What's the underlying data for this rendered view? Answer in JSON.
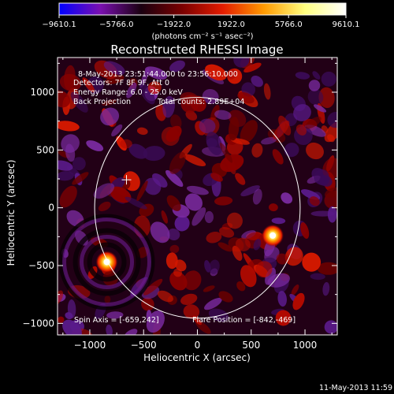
{
  "colorbar": {
    "tick_labels": [
      "−9610.1",
      "−5766.0",
      "−1922.0",
      "1922.0",
      "5766.0",
      "9610.1"
    ],
    "tick_values": [
      -9610.1,
      -5766.0,
      -1922.0,
      1922.0,
      5766.0,
      9610.1
    ],
    "units": "(photons cm⁻² s⁻¹ asec⁻²)",
    "stops": [
      "#0000ff",
      "#7a0fb0",
      "#1a0010",
      "#7a0000",
      "#e41c00",
      "#ff9a00",
      "#ffff80",
      "#ffffff"
    ]
  },
  "chart_data": {
    "type": "heatmap",
    "title": "Reconstructed RHESSI Image",
    "xlabel": "Heliocentric X (arcsec)",
    "ylabel": "Heliocentric Y (arcsec)",
    "xlim": [
      -1300,
      1300
    ],
    "ylim": [
      -1100,
      1300
    ],
    "x_ticks": [
      -1000,
      -500,
      0,
      500,
      1000
    ],
    "y_ticks": [
      -1000,
      -500,
      0,
      500,
      1000
    ],
    "x_tick_labels": [
      "−1000",
      "−500",
      "0",
      "500",
      "1000"
    ],
    "y_tick_labels": [
      "−1000",
      "−500",
      "0",
      "500",
      "1000"
    ],
    "solar_limb": {
      "center": [
        0,
        0
      ],
      "radius": 955
    },
    "sun_center_marker": [
      -659,
      242
    ],
    "sources": [
      {
        "x": 700,
        "y": -240,
        "intensity": 9610.1
      },
      {
        "x": -842,
        "y": -469,
        "intensity": 9610.1
      }
    ],
    "annotations": {
      "time_range": "8-May-2013 23:51:44.000 to 23:56:10.000",
      "detectors": "Detectors: 7F 8F 9F, Att 0",
      "energy": "Energy Range: 6.0 - 25.0 keV",
      "method": "Back Projection",
      "total_counts": "Total counts: 2.89E+04",
      "spin_axis": "Spin Axis = [-659,242]",
      "flare_position": "Flare Position = [-842,-469]"
    }
  },
  "footer": {
    "timestamp": "11-May-2013 11:59"
  }
}
